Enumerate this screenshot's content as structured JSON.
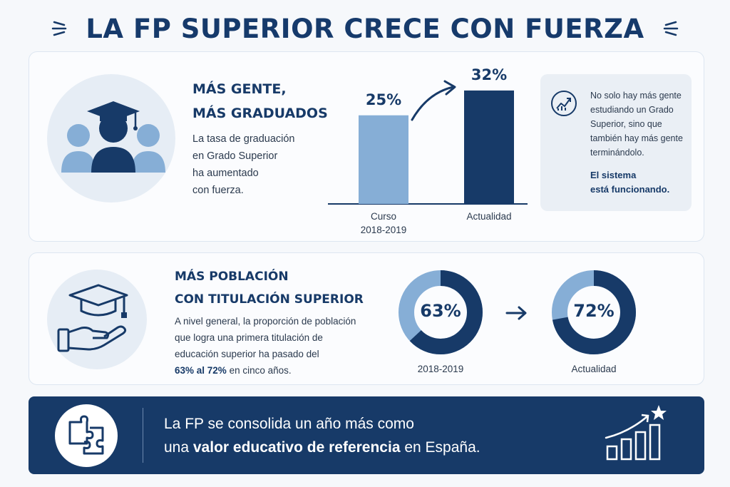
{
  "header": {
    "title": "LA FP SUPERIOR CRECE CON FUERZA"
  },
  "graduates": {
    "heading_line1": "MÁS GENTE,",
    "heading_line2": "MÁS GRADUADOS",
    "body_lines": [
      "La tasa de graduación",
      "en Grado Superior",
      "ha aumentado",
      "con fuerza."
    ],
    "icon": "graduates-group-icon"
  },
  "chart_data": {
    "type": "bar",
    "categories": [
      "Curso 2018-2019",
      "Actualidad"
    ],
    "category_lines": [
      [
        "Curso",
        "2018-2019"
      ],
      [
        "Actualidad"
      ]
    ],
    "values": [
      25,
      32
    ],
    "value_labels": [
      "25%",
      "32%"
    ],
    "ylim": [
      0,
      35
    ],
    "colors": [
      "#86aed6",
      "#173a68"
    ]
  },
  "note": {
    "icon": "trend-up-icon",
    "text_lines": [
      "No solo hay más gente",
      "estudiando un Grado",
      "Superior, sino que",
      "también hay más gente",
      "terminándolo."
    ],
    "strong_lines": [
      "El sistema",
      "está funcionando."
    ]
  },
  "population": {
    "heading_line1": "MÁS POBLACIÓN",
    "heading_line2": "CON TITULACIÓN SUPERIOR",
    "body_lines": [
      "A nivel general, la proporción de población",
      "que logra una primera titulación de",
      "educación superior ha pasado del"
    ],
    "body_last_highlight": "63% al 72%",
    "body_last_rest": " en cinco años.",
    "icon": "hand-graduation-cap-icon",
    "donuts": [
      {
        "value": 63,
        "label": "63%",
        "caption": "2018-2019"
      },
      {
        "value": 72,
        "label": "72%",
        "caption": "Actualidad"
      }
    ],
    "arrow_icon": "arrow-right-icon"
  },
  "banner": {
    "line1": "La FP se consolida un año más como",
    "line2_pre": "una ",
    "line2_bold": "valor educativo de referencia",
    "line2_post": " en España.",
    "left_icon": "puzzle-icon",
    "right_icon": "growth-bars-star-icon"
  },
  "colors": {
    "primary": "#173a68",
    "light": "#86aed6",
    "background": "#f6f8fb"
  }
}
